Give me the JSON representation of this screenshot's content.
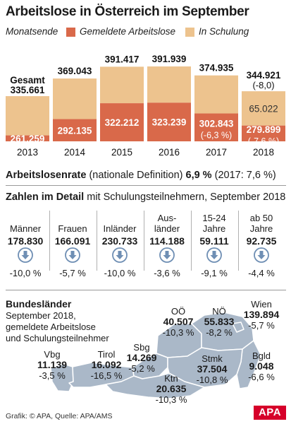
{
  "title": "Arbeitslose in Österreich im September",
  "legend": {
    "monatsende": "Monatsende",
    "gemeldete": "Gemeldete Arbeitslose",
    "schulung": "In Schulung"
  },
  "colors": {
    "gemeldete": "#d9694a",
    "schulung": "#edc38e",
    "map": "#aab8c8",
    "arrow": "#6f8fb4"
  },
  "chart_data": {
    "type": "bar",
    "categories": [
      "2013",
      "2014",
      "2015",
      "2016",
      "2017",
      "2018"
    ],
    "series": [
      {
        "name": "Gemeldete Arbeitslose",
        "values": [
          261259,
          292135,
          322212,
          323239,
          302843,
          279899
        ],
        "labels": [
          "261.259",
          "292.135",
          "322.212",
          "323.239",
          "302.843",
          "279.899"
        ],
        "sublabels": [
          "",
          "",
          "",
          "",
          "(-6,3 %)",
          "(-7,6 %)"
        ]
      },
      {
        "name": "In Schulung",
        "values": [
          74402,
          76908,
          69205,
          68700,
          72092,
          65022
        ],
        "labels": [
          "",
          "",
          "",
          "",
          "",
          "65.022"
        ]
      }
    ],
    "totals": [
      335661,
      369043,
      391417,
      391939,
      374935,
      344921
    ],
    "total_labels": [
      "335.661",
      "369.043",
      "391.417",
      "391.939",
      "374.935",
      "344.921"
    ],
    "total_prefix": "Gesamt",
    "total_change": "(-8,0)",
    "ylim": [
      0,
      400000
    ]
  },
  "rate": {
    "label": "Arbeitslosenrate",
    "def": "(nationale Definition)",
    "value": "6,9 %",
    "prev": "(2017: 7,6 %)"
  },
  "detail": {
    "title": "Zahlen im Detail",
    "subtitle": "mit Schulungsteilnehmern, September 2018",
    "items": [
      {
        "label": "Männer",
        "value": "178.830",
        "change": "-10,0 %"
      },
      {
        "label": "Frauen",
        "value": "166.091",
        "change": "-5,7 %"
      },
      {
        "label": "Inländer",
        "value": "230.733",
        "change": "-10,0 %"
      },
      {
        "label": "Aus-\nländer",
        "value": "114.188",
        "change": "-3,6 %"
      },
      {
        "label": "15-24\nJahre",
        "value": "59.111",
        "change": "-9,1 %"
      },
      {
        "label": "ab 50\nJahre",
        "value": "92.735",
        "change": "-4,4 %"
      }
    ]
  },
  "bundeslaender": {
    "title": "Bundesländer",
    "subtitle": "September 2018, gemeldete Arbeitslose und Schulungsteilnehmer",
    "states": {
      "ooe": {
        "name": "OÖ",
        "value": "40.507",
        "change": "-10,3 %"
      },
      "noe": {
        "name": "NÖ",
        "value": "55.833",
        "change": "-8,2 %"
      },
      "wien": {
        "name": "Wien",
        "value": "139.894",
        "change": "-5,7 %"
      },
      "vbg": {
        "name": "Vbg",
        "value": "11.139",
        "change": "-3,5 %"
      },
      "tirol": {
        "name": "Tirol",
        "value": "16.092",
        "change": "-16,5 %"
      },
      "sbg": {
        "name": "Sbg",
        "value": "14.269",
        "change": "-5,2 %"
      },
      "stmk": {
        "name": "Stmk",
        "value": "37.504",
        "change": "-10,8 %"
      },
      "bgld": {
        "name": "Bgld",
        "value": "9.048",
        "change": "-6,6 %"
      },
      "ktn": {
        "name": "Ktn",
        "value": "20.635",
        "change": "-10,3 %"
      }
    }
  },
  "footer": "Grafik: © APA, Quelle: APA/AMS",
  "logo": "APA"
}
